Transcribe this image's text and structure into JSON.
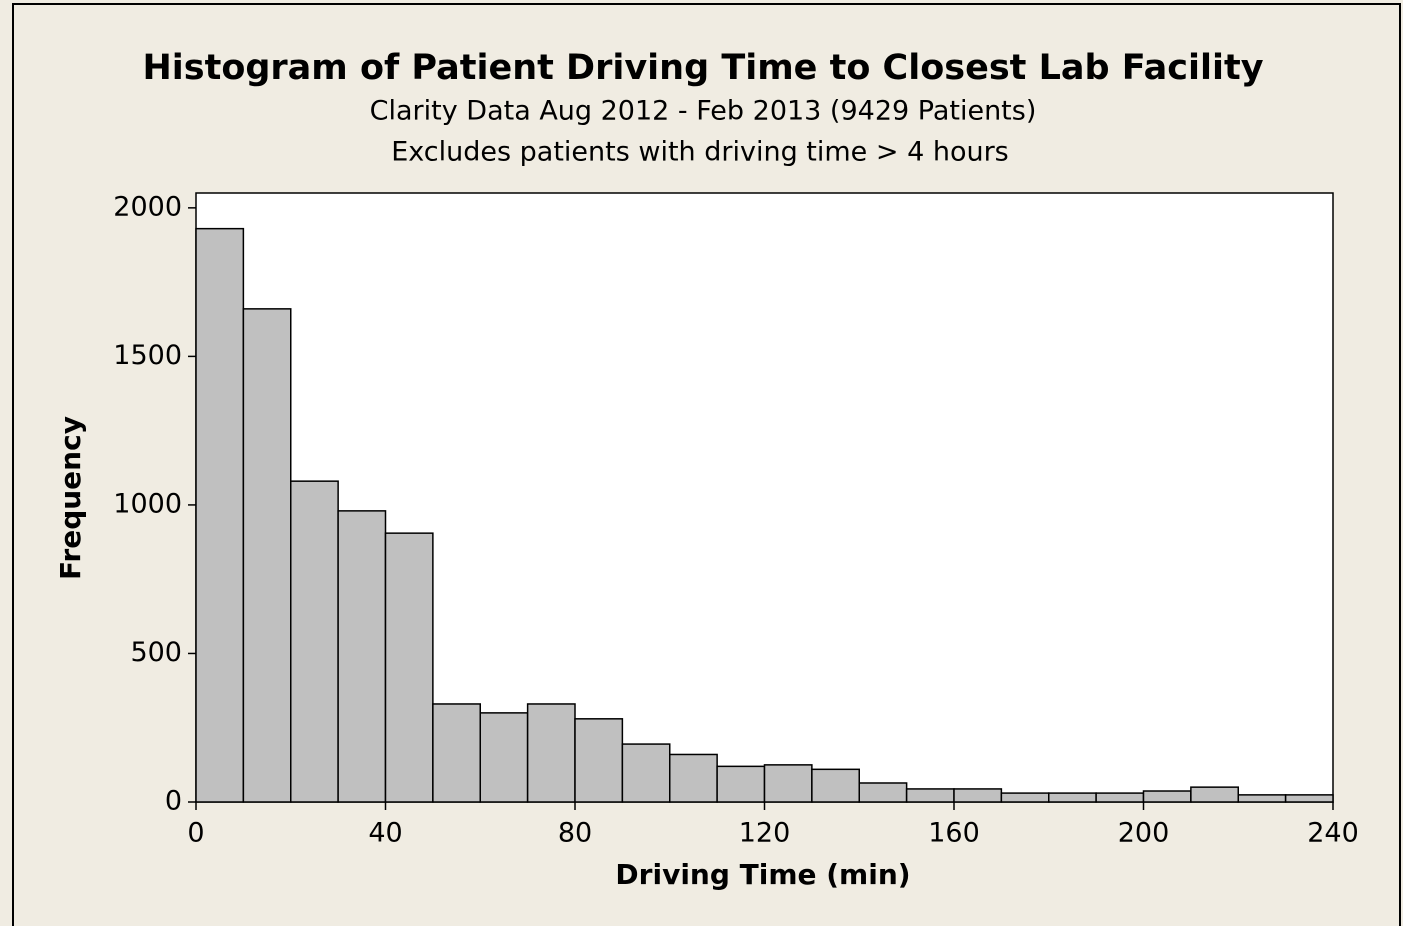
{
  "chart_data": {
    "type": "histogram",
    "title": "Histogram of Patient Driving Time to Closest Lab Facility",
    "subtitle": [
      "Clarity Data Aug 2012 - Feb 2013 (9429 Patients)",
      "Excludes patients with driving time > 4 hours"
    ],
    "x_label": "Driving Time (min)",
    "y_label": "Frequency",
    "bins": [
      0,
      10,
      20,
      30,
      40,
      50,
      60,
      70,
      80,
      90,
      100,
      110,
      120,
      130,
      140,
      150,
      160,
      170,
      180,
      190,
      200,
      210,
      220,
      230,
      240
    ],
    "values": [
      1930,
      1660,
      1080,
      980,
      905,
      330,
      300,
      330,
      280,
      195,
      160,
      120,
      125,
      110,
      64,
      44,
      44,
      30,
      30,
      30,
      37,
      50,
      24,
      24
    ],
    "color": "#c0c0c0",
    "xlim": [
      0,
      240
    ],
    "xticks": [
      0,
      40,
      80,
      120,
      160,
      200,
      240
    ],
    "ylim": [
      0,
      2050
    ],
    "yticks": [
      0,
      500,
      1000,
      1500,
      2000
    ],
    "grid": false
  }
}
